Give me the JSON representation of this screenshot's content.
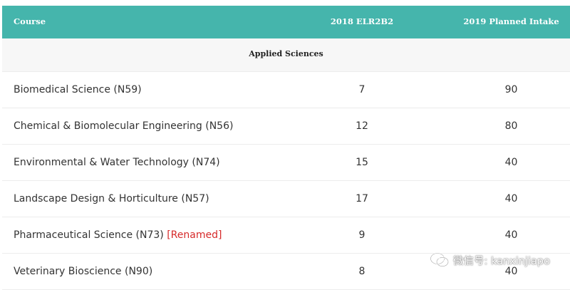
{
  "table": {
    "columns": [
      "Course",
      "2018 ELR2B2",
      "2019 Planned Intake"
    ],
    "group_label": "Applied Sciences",
    "rows": [
      {
        "course": "Biomedical Science (N59)",
        "tag": "",
        "elr2b2": "7",
        "intake": "90"
      },
      {
        "course": "Chemical & Biomolecular Engineering (N56)",
        "tag": "",
        "elr2b2": "12",
        "intake": "80"
      },
      {
        "course": "Environmental & Water Technology (N74)",
        "tag": "",
        "elr2b2": "15",
        "intake": "40"
      },
      {
        "course": "Landscape Design & Horticulture (N57)",
        "tag": "",
        "elr2b2": "17",
        "intake": "40"
      },
      {
        "course": "Pharmaceutical Science (N73)",
        "tag": "[Renamed]",
        "elr2b2": "9",
        "intake": "40"
      },
      {
        "course": "Veterinary Bioscience (N90)",
        "tag": "",
        "elr2b2": "8",
        "intake": "40"
      }
    ]
  },
  "watermark": {
    "label": "微信号: kanxinjiapo",
    "icon": "wechat-icon"
  },
  "colors": {
    "header_bg": "#45b5ac",
    "group_bg": "#f7f7f7",
    "renamed": "#d62a2a"
  }
}
